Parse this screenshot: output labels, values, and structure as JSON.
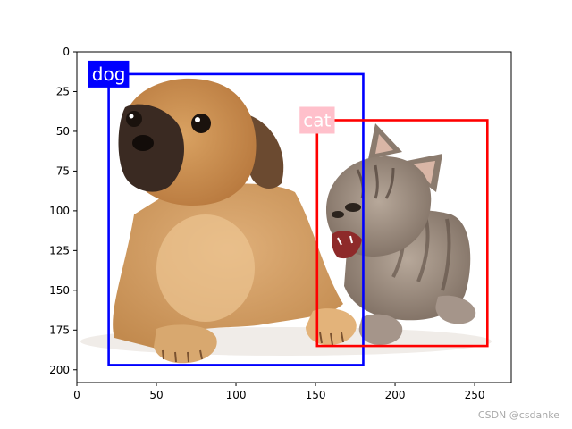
{
  "image_extent": {
    "x": [
      0,
      273
    ],
    "y": [
      0,
      208
    ]
  },
  "x_ticks": [
    0,
    50,
    100,
    150,
    200,
    250
  ],
  "y_ticks": [
    0,
    25,
    50,
    75,
    100,
    125,
    150,
    175,
    200
  ],
  "subjects": [
    "puppy",
    "kitten"
  ],
  "boxes": [
    {
      "label": "dog",
      "color": "#0000ff",
      "text_color": "#ffffff",
      "x0": 20,
      "y0": 14,
      "x1": 180,
      "y1": 197
    },
    {
      "label": "cat",
      "color": "#ff0000",
      "label_bg": "#ffc0cb",
      "text_color": "#ffffff",
      "x0": 151,
      "y0": 43,
      "x1": 258,
      "y1": 185
    }
  ],
  "watermark": "CSDN @csdanke"
}
